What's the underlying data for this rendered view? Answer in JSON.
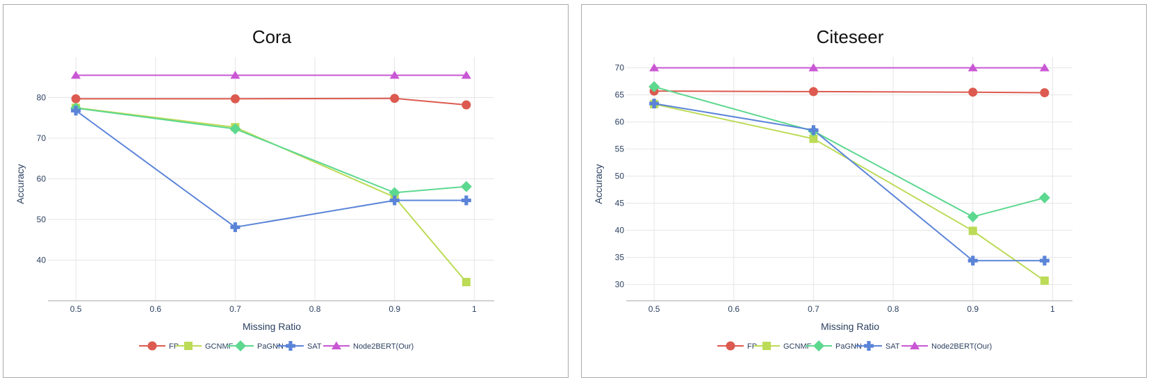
{
  "chart_data": [
    {
      "type": "line",
      "title": "Cora",
      "xlabel": "Missing Ratio",
      "ylabel": "Accuracy",
      "xlim": [
        0.465,
        1.025
      ],
      "ylim": [
        30,
        90
      ],
      "xticks": [
        0.5,
        0.6,
        0.7,
        0.8,
        0.9,
        1
      ],
      "xtick_labels": [
        "0.5",
        "0.6",
        "0.7",
        "0.8",
        "0.9",
        "1"
      ],
      "yticks": [
        40,
        50,
        60,
        70,
        80
      ],
      "grid": true,
      "legend_position": "bottom",
      "series": [
        {
          "name": "FP",
          "marker": "circle",
          "color": "#dc5a4f",
          "x": [
            0.5,
            0.7,
            0.9,
            0.99
          ],
          "y": [
            79.7,
            79.7,
            79.8,
            78.2
          ]
        },
        {
          "name": "GCNMF",
          "marker": "square",
          "color": "#bcdb56",
          "x": [
            0.5,
            0.7,
            0.9,
            0.99
          ],
          "y": [
            77.5,
            72.7,
            55.5,
            34.6
          ]
        },
        {
          "name": "PaGNN",
          "marker": "diamond",
          "color": "#5cd88f",
          "x": [
            0.5,
            0.7,
            0.9,
            0.99
          ],
          "y": [
            77.4,
            72.3,
            56.6,
            58.1
          ]
        },
        {
          "name": "SAT",
          "marker": "cross",
          "color": "#5b84d8",
          "x": [
            0.5,
            0.7,
            0.9,
            0.99
          ],
          "y": [
            76.8,
            48.1,
            54.7,
            54.7
          ]
        },
        {
          "name": "Node2BERT(Our)",
          "marker": "triangle-up",
          "color": "#c957d4",
          "x": [
            0.5,
            0.7,
            0.9,
            0.99
          ],
          "y": [
            85.5,
            85.5,
            85.5,
            85.5
          ]
        }
      ]
    },
    {
      "type": "line",
      "title": "Citeseer",
      "xlabel": "Missing Ratio",
      "ylabel": "Accuracy",
      "xlim": [
        0.465,
        1.025
      ],
      "ylim": [
        27,
        72
      ],
      "xticks": [
        0.5,
        0.6,
        0.7,
        0.8,
        0.9,
        1
      ],
      "xtick_labels": [
        "0.5",
        "0.6",
        "0.7",
        "0.8",
        "0.9",
        "1"
      ],
      "yticks": [
        30,
        35,
        40,
        45,
        50,
        55,
        60,
        65,
        70
      ],
      "grid": true,
      "legend_position": "bottom",
      "series": [
        {
          "name": "FP",
          "marker": "circle",
          "color": "#dc5a4f",
          "x": [
            0.5,
            0.7,
            0.9,
            0.99
          ],
          "y": [
            65.7,
            65.6,
            65.5,
            65.4
          ]
        },
        {
          "name": "GCNMF",
          "marker": "square",
          "color": "#bcdb56",
          "x": [
            0.5,
            0.7,
            0.9,
            0.99
          ],
          "y": [
            63.3,
            56.9,
            39.9,
            30.7
          ]
        },
        {
          "name": "PaGNN",
          "marker": "diamond",
          "color": "#5cd88f",
          "x": [
            0.5,
            0.7,
            0.9,
            0.99
          ],
          "y": [
            66.5,
            58.3,
            42.5,
            46.0
          ]
        },
        {
          "name": "SAT",
          "marker": "cross",
          "color": "#5b84d8",
          "x": [
            0.5,
            0.7,
            0.9,
            0.99
          ],
          "y": [
            63.4,
            58.5,
            34.4,
            34.4
          ]
        },
        {
          "name": "Node2BERT(Our)",
          "marker": "triangle-up",
          "color": "#c957d4",
          "x": [
            0.5,
            0.7,
            0.9,
            0.99
          ],
          "y": [
            70.0,
            70.0,
            70.0,
            70.0
          ]
        }
      ]
    }
  ]
}
